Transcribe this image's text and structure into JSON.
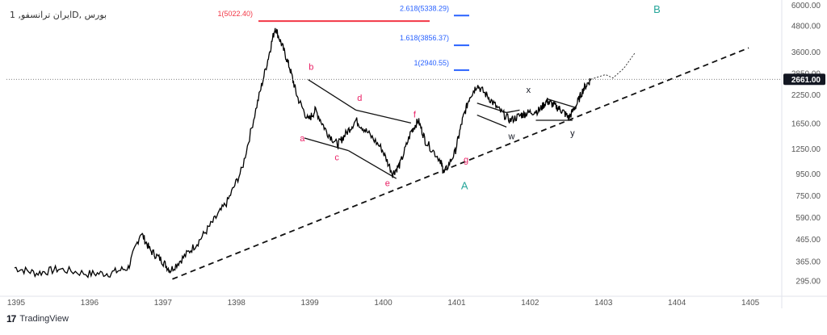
{
  "header": {
    "title": "بورس ,Dایران ترانسفو, 1"
  },
  "footer": {
    "brand": "TradingView",
    "logo_icon": "tradingview-logo-icon"
  },
  "chart_data": {
    "type": "line",
    "y_scale": "log",
    "ylim": [
      260,
      6000
    ],
    "x_axis": {
      "ticks": [
        "1395",
        "1396",
        "1397",
        "1398",
        "1399",
        "1400",
        "1401",
        "1402",
        "1403",
        "1404",
        "1405"
      ]
    },
    "y_axis": {
      "ticks": [
        295,
        365,
        465,
        590,
        750,
        950,
        1250,
        1650,
        2250,
        2850,
        3600,
        4800,
        6000
      ],
      "tick_labels": [
        "295.00",
        "365.00",
        "465.00",
        "590.00",
        "750.00",
        "950.00",
        "1250.00",
        "1650.00",
        "2250.00",
        "2850.00",
        "3600.00",
        "4800.00",
        "6000.00"
      ]
    },
    "last_price": {
      "value": 2661,
      "label": "2661.00"
    },
    "series": [
      {
        "points": [
          [
            "1395",
            340
          ],
          [
            "1395.3",
            320
          ],
          [
            "1395.6",
            335
          ],
          [
            "1396",
            318
          ],
          [
            "1396.3",
            320
          ],
          [
            "1396.55",
            340
          ],
          [
            "1396.72",
            500
          ],
          [
            "1396.85",
            410
          ],
          [
            "1397",
            370
          ],
          [
            "1397.12",
            330
          ],
          [
            "1397.3",
            380
          ],
          [
            "1397.5",
            450
          ],
          [
            "1397.7",
            560
          ],
          [
            "1397.9",
            700
          ],
          [
            "1398.1",
            1000
          ],
          [
            "1398.3",
            2000
          ],
          [
            "1398.45",
            3300
          ],
          [
            "1398.55",
            4700
          ],
          [
            "1398.65",
            3800
          ],
          [
            "1398.75",
            3000
          ],
          [
            "1398.85",
            2200
          ],
          [
            "1399",
            1700
          ],
          [
            "1399.1",
            1900
          ],
          [
            "1399.25",
            1500
          ],
          [
            "1399.4",
            1300
          ],
          [
            "1399.5",
            1450
          ],
          [
            "1399.65",
            1700
          ],
          [
            "1399.8",
            1500
          ],
          [
            "1400",
            1250
          ],
          [
            "1400.15",
            950
          ],
          [
            "1400.25",
            1050
          ],
          [
            "1400.4",
            1500
          ],
          [
            "1400.5",
            1700
          ],
          [
            "1400.6",
            1350
          ],
          [
            "1400.8",
            1100
          ],
          [
            "1400.85",
            950
          ],
          [
            "1401",
            1200
          ],
          [
            "1401.1",
            1700
          ],
          [
            "1401.2",
            2200
          ],
          [
            "1401.3",
            2500
          ],
          [
            "1401.45",
            2200
          ],
          [
            "1401.6",
            1900
          ],
          [
            "1401.75",
            1700
          ],
          [
            "1401.9",
            1800
          ],
          [
            "1402",
            1850
          ],
          [
            "1402.15",
            1900
          ],
          [
            "1402.25",
            2100
          ],
          [
            "1402.35",
            2000
          ],
          [
            "1402.45",
            1900
          ],
          [
            "1402.55",
            1750
          ],
          [
            "1402.65",
            2000
          ],
          [
            "1402.75",
            2400
          ],
          [
            "1402.85",
            2661
          ]
        ]
      }
    ],
    "trendlines": [
      {
        "from": [
          "1397.15",
          300
        ],
        "to": [
          "1405",
          3750
        ],
        "style": "dashed"
      },
      {
        "from": [
          "1399",
          2650
        ],
        "to": [
          "1399.65",
          1900
        ],
        "style": "solid"
      },
      {
        "from": [
          "1399.65",
          1900
        ],
        "to": [
          "1400.4",
          1650
        ],
        "style": "solid"
      },
      {
        "from": [
          "1398.95",
          1400
        ],
        "to": [
          "1399.55",
          1220
        ],
        "style": "solid"
      },
      {
        "from": [
          "1399.55",
          1220
        ],
        "to": [
          "1400.2",
          900
        ],
        "style": "solid"
      },
      {
        "from": [
          "1401.3",
          1800
        ],
        "to": [
          "1401.7",
          1580
        ],
        "style": "solid"
      },
      {
        "from": [
          "1401.3",
          2050
        ],
        "to": [
          "1401.7",
          1850
        ],
        "style": "solid"
      },
      {
        "from": [
          "1401.7",
          1850
        ],
        "to": [
          "1401.88",
          1900
        ],
        "style": "solid"
      },
      {
        "from": [
          "1402.1",
          1700
        ],
        "to": [
          "1402.6",
          1700
        ],
        "style": "solid"
      },
      {
        "from": [
          "1402.25",
          2150
        ],
        "to": [
          "1402.65",
          1950
        ],
        "style": "solid"
      }
    ],
    "projection": [
      [
        "1402.85",
        2661
      ],
      [
        "1403.05",
        2800
      ],
      [
        "1403.15",
        2700
      ],
      [
        "1403.3",
        3000
      ],
      [
        "1403.45",
        3550
      ]
    ],
    "fib_levels": [
      {
        "label": "2.618(5338.29)",
        "value": 5338.29,
        "color": "#2962ff"
      },
      {
        "label": "1.618(3856.37)",
        "value": 3856.37,
        "color": "#2962ff"
      },
      {
        "label": "1(2940.55)",
        "value": 2940.55,
        "color": "#2962ff"
      },
      {
        "label": "1(5022.40)",
        "value": 5022.4,
        "color": "#f23645"
      }
    ],
    "wave_labels": [
      {
        "text": "a",
        "x": "1398.92",
        "y": 1350,
        "color": "#e91e63"
      },
      {
        "text": "b",
        "x": "1399.04",
        "y": 2950,
        "color": "#e91e63"
      },
      {
        "text": "c",
        "x": "1399.39",
        "y": 1100,
        "color": "#e91e63"
      },
      {
        "text": "d",
        "x": "1399.7",
        "y": 2100,
        "color": "#e91e63"
      },
      {
        "text": "e",
        "x": "1400.08",
        "y": 830,
        "color": "#e91e63"
      },
      {
        "text": "f",
        "x": "1400.45",
        "y": 1750,
        "color": "#e91e63"
      },
      {
        "text": "g",
        "x": "1401.15",
        "y": 1070,
        "color": "#e91e63"
      },
      {
        "text": "w",
        "x": "1401.77",
        "y": 1380,
        "color": "#131722"
      },
      {
        "text": "x",
        "x": "1402",
        "y": 2300,
        "color": "#131722"
      },
      {
        "text": "y",
        "x": "1402.6",
        "y": 1430,
        "color": "#131722"
      },
      {
        "text": "A",
        "x": "1401.13",
        "y": 800,
        "color": "#26a69a"
      },
      {
        "text": "B",
        "x": "1403.75",
        "y": 5500,
        "color": "#26a69a"
      }
    ]
  }
}
